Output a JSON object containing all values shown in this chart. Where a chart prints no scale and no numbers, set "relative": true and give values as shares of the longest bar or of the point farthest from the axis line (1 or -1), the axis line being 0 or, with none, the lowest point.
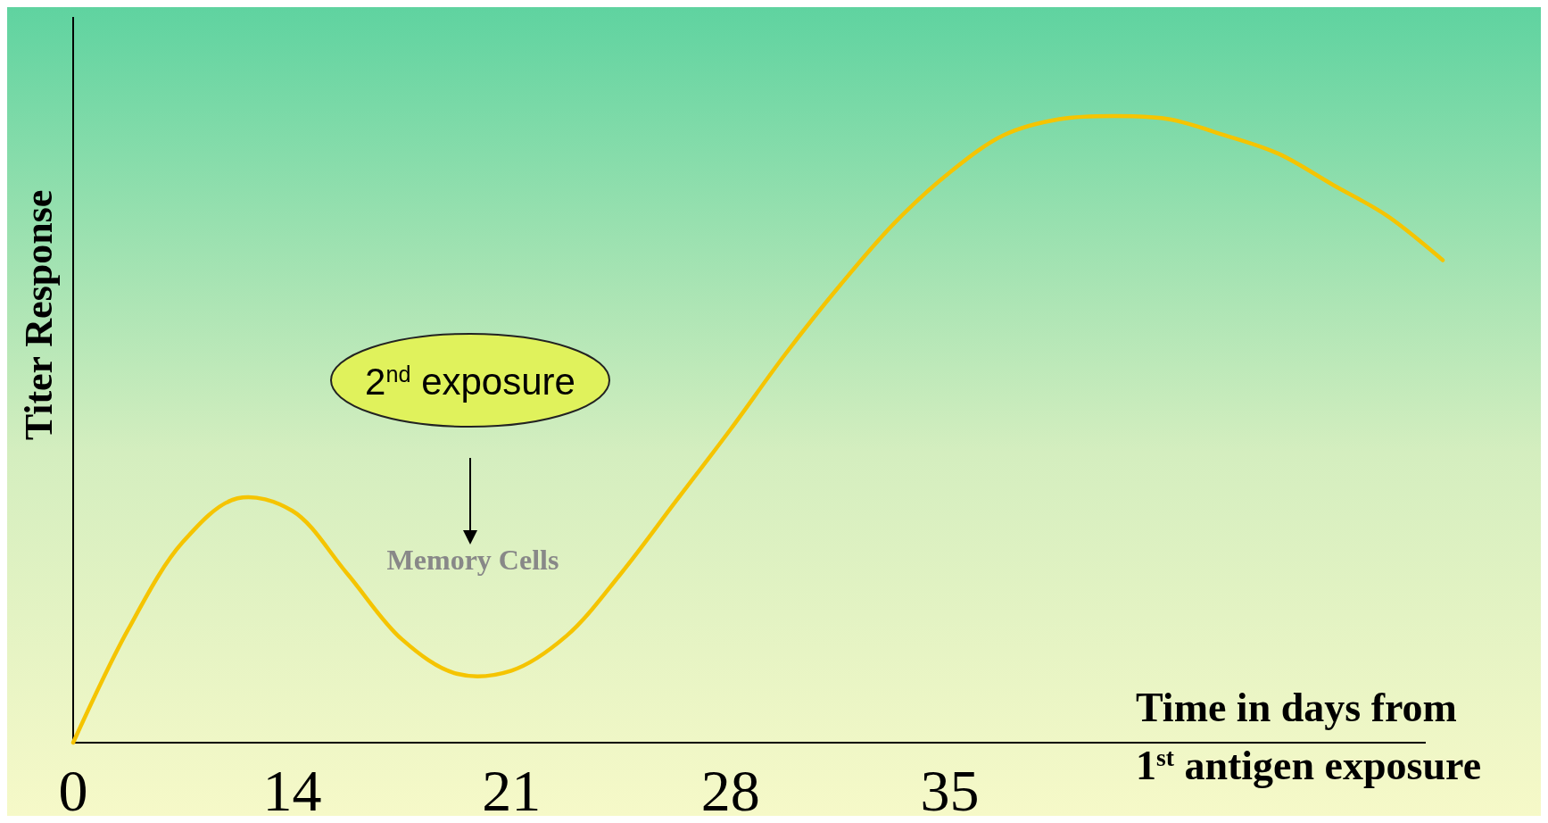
{
  "chart_data": {
    "type": "line",
    "relative": true,
    "xlabel": "Time in days from 1$^{st}$ antigen exposure",
    "ylabel": "Titer Response",
    "categories": [
      "0",
      null,
      null,
      null,
      "14",
      null,
      null,
      null,
      "21",
      null,
      null,
      null,
      "28",
      null,
      null,
      null,
      "35",
      null,
      null,
      null,
      null,
      null,
      null,
      null,
      null,
      null
    ],
    "series": [
      {
        "color": "#f5c400",
        "values": [
          0,
          0.18,
          0.32,
          0.39,
          0.37,
          0.27,
          0.165,
          0.11,
          0.115,
          0.17,
          0.27,
          0.385,
          0.5,
          0.62,
          0.73,
          0.83,
          0.91,
          0.97,
          0.995,
          1,
          0.995,
          0.97,
          0.94,
          0.89,
          0.84,
          0.77
        ]
      }
    ],
    "annotations": [
      "2$^{nd}$ exposure",
      "Memory Cells"
    ],
    "grid": false,
    "marker": "none",
    "line_style": "solid"
  }
}
